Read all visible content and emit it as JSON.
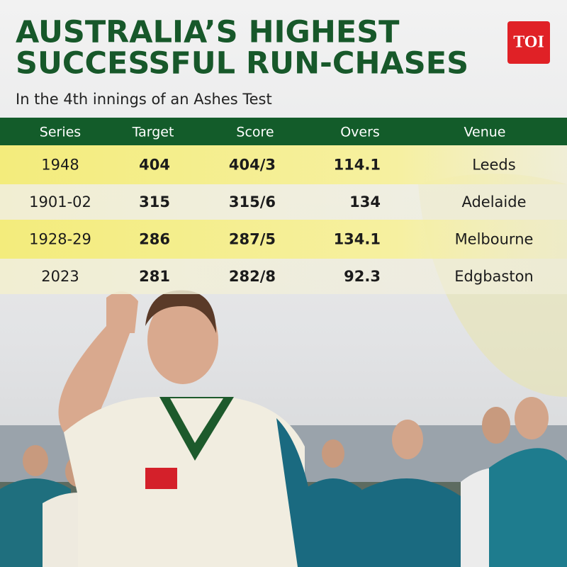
{
  "header": {
    "title_lines": [
      "AUSTRALIA’S HIGHEST",
      "SUCCESSFUL RUN-CHASES"
    ],
    "subtitle": "In the 4th innings of an Ashes Test",
    "logo": "TOI"
  },
  "table": {
    "columns": [
      "Series",
      "Target",
      "Score",
      "Overs",
      "Venue"
    ],
    "rows": [
      [
        "1948",
        "404",
        "404/3",
        "114.1",
        "Leeds"
      ],
      [
        "1901-02",
        "315",
        "315/6",
        "134",
        "Adelaide"
      ],
      [
        "1928-29",
        "286",
        "287/5",
        "134.1",
        "Melbourne"
      ],
      [
        "2023",
        "281",
        "282/8",
        "92.3",
        "Edgbaston"
      ]
    ]
  }
}
